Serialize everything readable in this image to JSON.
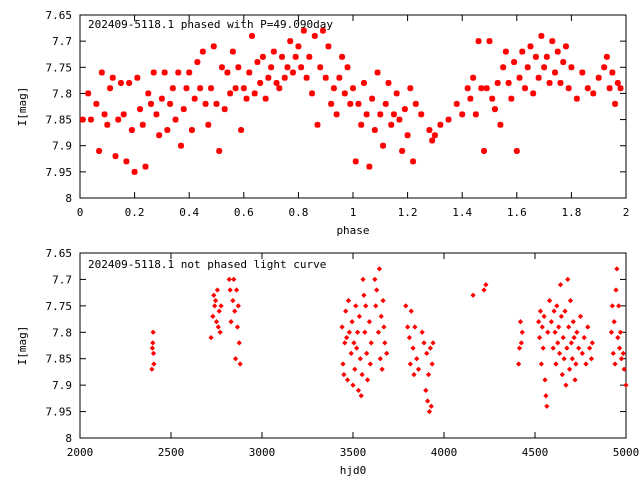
{
  "chart_data": [
    {
      "type": "scatter",
      "title": "202409-5118.1 phased with P=49.090day",
      "xlabel": "phase",
      "ylabel": "I[mag]",
      "xlim": [
        0,
        2
      ],
      "ylim": [
        7.65,
        8
      ],
      "y_inverted": true,
      "x_ticks": [
        "0",
        "0.2",
        "0.4",
        "0.6",
        "0.8",
        "1",
        "1.2",
        "1.4",
        "1.6",
        "1.8",
        "2"
      ],
      "y_ticks": [
        "7.65",
        "7.7",
        "7.75",
        "7.8",
        "7.85",
        "7.9",
        "7.95",
        "8"
      ],
      "marker_color": "#ff0000",
      "marker": "star",
      "points": [
        [
          0.01,
          7.85
        ],
        [
          0.03,
          7.8
        ],
        [
          0.04,
          7.85
        ],
        [
          0.06,
          7.82
        ],
        [
          0.07,
          7.91
        ],
        [
          0.08,
          7.76
        ],
        [
          0.09,
          7.84
        ],
        [
          0.1,
          7.86
        ],
        [
          0.11,
          7.79
        ],
        [
          0.12,
          7.77
        ],
        [
          0.13,
          7.92
        ],
        [
          0.14,
          7.85
        ],
        [
          0.15,
          7.78
        ],
        [
          0.16,
          7.84
        ],
        [
          0.17,
          7.93
        ],
        [
          0.18,
          7.78
        ],
        [
          0.19,
          7.87
        ],
        [
          0.2,
          7.95
        ],
        [
          0.21,
          7.77
        ],
        [
          0.22,
          7.83
        ],
        [
          0.23,
          7.86
        ],
        [
          0.24,
          7.94
        ],
        [
          0.25,
          7.8
        ],
        [
          0.26,
          7.82
        ],
        [
          0.27,
          7.76
        ],
        [
          0.28,
          7.84
        ],
        [
          0.29,
          7.88
        ],
        [
          0.3,
          7.81
        ],
        [
          0.31,
          7.76
        ],
        [
          0.32,
          7.87
        ],
        [
          0.33,
          7.82
        ],
        [
          0.34,
          7.79
        ],
        [
          0.35,
          7.85
        ],
        [
          0.36,
          7.76
        ],
        [
          0.37,
          7.9
        ],
        [
          0.38,
          7.83
        ],
        [
          0.39,
          7.79
        ],
        [
          0.4,
          7.76
        ],
        [
          0.41,
          7.87
        ],
        [
          0.42,
          7.81
        ],
        [
          0.43,
          7.74
        ],
        [
          0.44,
          7.79
        ],
        [
          0.45,
          7.72
        ],
        [
          0.46,
          7.82
        ],
        [
          0.47,
          7.86
        ],
        [
          0.48,
          7.79
        ],
        [
          0.49,
          7.71
        ],
        [
          0.5,
          7.82
        ],
        [
          0.51,
          7.91
        ],
        [
          0.52,
          7.75
        ],
        [
          0.53,
          7.83
        ],
        [
          0.54,
          7.76
        ],
        [
          0.55,
          7.8
        ],
        [
          0.56,
          7.72
        ],
        [
          0.57,
          7.79
        ],
        [
          0.58,
          7.75
        ],
        [
          0.59,
          7.87
        ],
        [
          0.6,
          7.79
        ],
        [
          0.61,
          7.81
        ],
        [
          0.62,
          7.76
        ],
        [
          0.63,
          7.69
        ],
        [
          0.64,
          7.8
        ],
        [
          0.65,
          7.74
        ],
        [
          0.66,
          7.78
        ],
        [
          0.67,
          7.73
        ],
        [
          0.68,
          7.81
        ],
        [
          0.69,
          7.77
        ],
        [
          0.7,
          7.75
        ],
        [
          0.71,
          7.72
        ],
        [
          0.72,
          7.78
        ],
        [
          0.73,
          7.79
        ],
        [
          0.74,
          7.73
        ],
        [
          0.75,
          7.77
        ],
        [
          0.76,
          7.75
        ],
        [
          0.77,
          7.7
        ],
        [
          0.78,
          7.76
        ],
        [
          0.79,
          7.73
        ],
        [
          0.8,
          7.71
        ],
        [
          0.81,
          7.75
        ],
        [
          0.82,
          7.68
        ],
        [
          0.83,
          7.77
        ],
        [
          0.84,
          7.73
        ],
        [
          0.85,
          7.8
        ],
        [
          0.86,
          7.69
        ],
        [
          0.87,
          7.86
        ],
        [
          0.88,
          7.75
        ],
        [
          0.89,
          7.68
        ],
        [
          0.9,
          7.77
        ],
        [
          0.91,
          7.71
        ],
        [
          0.92,
          7.82
        ],
        [
          0.93,
          7.79
        ],
        [
          0.94,
          7.84
        ],
        [
          0.95,
          7.77
        ],
        [
          0.96,
          7.73
        ],
        [
          0.97,
          7.8
        ],
        [
          0.98,
          7.75
        ],
        [
          0.99,
          7.82
        ],
        [
          1.0,
          7.79
        ],
        [
          1.01,
          7.93
        ],
        [
          1.02,
          7.82
        ],
        [
          1.03,
          7.86
        ],
        [
          1.04,
          7.78
        ],
        [
          1.05,
          7.84
        ],
        [
          1.06,
          7.94
        ],
        [
          1.07,
          7.81
        ],
        [
          1.08,
          7.87
        ],
        [
          1.09,
          7.76
        ],
        [
          1.1,
          7.84
        ],
        [
          1.11,
          7.9
        ],
        [
          1.12,
          7.82
        ],
        [
          1.13,
          7.78
        ],
        [
          1.14,
          7.86
        ],
        [
          1.15,
          7.84
        ],
        [
          1.16,
          7.8
        ],
        [
          1.17,
          7.85
        ],
        [
          1.18,
          7.91
        ],
        [
          1.19,
          7.83
        ],
        [
          1.2,
          7.88
        ],
        [
          1.21,
          7.79
        ],
        [
          1.22,
          7.93
        ],
        [
          1.23,
          7.82
        ],
        [
          1.25,
          7.84
        ],
        [
          1.28,
          7.87
        ],
        [
          1.29,
          7.89
        ],
        [
          1.3,
          7.88
        ],
        [
          1.32,
          7.86
        ],
        [
          1.35,
          7.85
        ],
        [
          1.38,
          7.82
        ],
        [
          1.4,
          7.84
        ],
        [
          1.42,
          7.79
        ],
        [
          1.43,
          7.81
        ],
        [
          1.44,
          7.77
        ],
        [
          1.45,
          7.84
        ],
        [
          1.46,
          7.7
        ],
        [
          1.47,
          7.79
        ],
        [
          1.48,
          7.91
        ],
        [
          1.49,
          7.79
        ],
        [
          1.5,
          7.7
        ],
        [
          1.51,
          7.81
        ],
        [
          1.52,
          7.83
        ],
        [
          1.53,
          7.78
        ],
        [
          1.54,
          7.86
        ],
        [
          1.55,
          7.75
        ],
        [
          1.56,
          7.72
        ],
        [
          1.57,
          7.78
        ],
        [
          1.58,
          7.81
        ],
        [
          1.59,
          7.74
        ],
        [
          1.6,
          7.91
        ],
        [
          1.61,
          7.77
        ],
        [
          1.62,
          7.72
        ],
        [
          1.63,
          7.79
        ],
        [
          1.64,
          7.75
        ],
        [
          1.65,
          7.71
        ],
        [
          1.66,
          7.8
        ],
        [
          1.67,
          7.73
        ],
        [
          1.68,
          7.77
        ],
        [
          1.69,
          7.69
        ],
        [
          1.7,
          7.75
        ],
        [
          1.71,
          7.73
        ],
        [
          1.72,
          7.78
        ],
        [
          1.73,
          7.7
        ],
        [
          1.74,
          7.76
        ],
        [
          1.75,
          7.72
        ],
        [
          1.76,
          7.78
        ],
        [
          1.77,
          7.74
        ],
        [
          1.78,
          7.71
        ],
        [
          1.79,
          7.79
        ],
        [
          1.8,
          7.75
        ],
        [
          1.82,
          7.81
        ],
        [
          1.84,
          7.76
        ],
        [
          1.86,
          7.79
        ],
        [
          1.88,
          7.8
        ],
        [
          1.9,
          7.77
        ],
        [
          1.92,
          7.75
        ],
        [
          1.93,
          7.73
        ],
        [
          1.94,
          7.79
        ],
        [
          1.95,
          7.76
        ],
        [
          1.96,
          7.82
        ],
        [
          1.97,
          7.78
        ],
        [
          1.98,
          7.79
        ]
      ]
    },
    {
      "type": "scatter",
      "title": "202409-5118.1 not phased light curve",
      "xlabel": "hjd0",
      "ylabel": "I[mag]",
      "xlim": [
        2000,
        5000
      ],
      "ylim": [
        7.65,
        8
      ],
      "y_inverted": true,
      "x_ticks": [
        "2000",
        "2500",
        "3000",
        "3500",
        "4000",
        "4500",
        "5000"
      ],
      "y_ticks": [
        "7.65",
        "7.7",
        "7.75",
        "7.8",
        "7.85",
        "7.9",
        "7.95",
        "8"
      ],
      "marker_color": "#ff0000",
      "marker": "diamond",
      "points": [
        [
          2395,
          7.87
        ],
        [
          2398,
          7.83
        ],
        [
          2400,
          7.82
        ],
        [
          2402,
          7.8
        ],
        [
          2404,
          7.84
        ],
        [
          2406,
          7.86
        ],
        [
          2720,
          7.81
        ],
        [
          2730,
          7.77
        ],
        [
          2735,
          7.73
        ],
        [
          2740,
          7.75
        ],
        [
          2745,
          7.74
        ],
        [
          2750,
          7.78
        ],
        [
          2755,
          7.72
        ],
        [
          2760,
          7.79
        ],
        [
          2765,
          7.76
        ],
        [
          2770,
          7.8
        ],
        [
          2775,
          7.75
        ],
        [
          2820,
          7.7
        ],
        [
          2825,
          7.72
        ],
        [
          2830,
          7.78
        ],
        [
          2840,
          7.74
        ],
        [
          2845,
          7.7
        ],
        [
          2850,
          7.76
        ],
        [
          2855,
          7.85
        ],
        [
          2860,
          7.72
        ],
        [
          2865,
          7.79
        ],
        [
          2870,
          7.75
        ],
        [
          2880,
          7.86
        ],
        [
          2875,
          7.82
        ],
        [
          3440,
          7.79
        ],
        [
          3445,
          7.86
        ],
        [
          3450,
          7.88
        ],
        [
          3455,
          7.82
        ],
        [
          3460,
          7.76
        ],
        [
          3465,
          7.81
        ],
        [
          3470,
          7.89
        ],
        [
          3475,
          7.74
        ],
        [
          3480,
          7.8
        ],
        [
          3490,
          7.84
        ],
        [
          3495,
          7.78
        ],
        [
          3500,
          7.9
        ],
        [
          3505,
          7.82
        ],
        [
          3510,
          7.87
        ],
        [
          3515,
          7.75
        ],
        [
          3520,
          7.83
        ],
        [
          3525,
          7.8
        ],
        [
          3530,
          7.91
        ],
        [
          3535,
          7.77
        ],
        [
          3540,
          7.85
        ],
        [
          3545,
          7.92
        ],
        [
          3550,
          7.88
        ],
        [
          3555,
          7.7
        ],
        [
          3560,
          7.73
        ],
        [
          3565,
          7.8
        ],
        [
          3570,
          7.75
        ],
        [
          3575,
          7.84
        ],
        [
          3580,
          7.89
        ],
        [
          3590,
          7.78
        ],
        [
          3595,
          7.86
        ],
        [
          3600,
          7.82
        ],
        [
          3620,
          7.7
        ],
        [
          3625,
          7.75
        ],
        [
          3630,
          7.72
        ],
        [
          3640,
          7.8
        ],
        [
          3645,
          7.68
        ],
        [
          3650,
          7.85
        ],
        [
          3655,
          7.77
        ],
        [
          3660,
          7.87
        ],
        [
          3665,
          7.74
        ],
        [
          3670,
          7.79
        ],
        [
          3675,
          7.82
        ],
        [
          3685,
          7.84
        ],
        [
          3790,
          7.75
        ],
        [
          3800,
          7.79
        ],
        [
          3810,
          7.81
        ],
        [
          3815,
          7.86
        ],
        [
          3820,
          7.76
        ],
        [
          3830,
          7.83
        ],
        [
          3835,
          7.88
        ],
        [
          3840,
          7.79
        ],
        [
          3850,
          7.85
        ],
        [
          3860,
          7.87
        ],
        [
          3880,
          7.8
        ],
        [
          3890,
          7.82
        ],
        [
          3900,
          7.91
        ],
        [
          3905,
          7.84
        ],
        [
          3910,
          7.93
        ],
        [
          3915,
          7.88
        ],
        [
          3920,
          7.95
        ],
        [
          3925,
          7.83
        ],
        [
          3930,
          7.94
        ],
        [
          3935,
          7.86
        ],
        [
          3940,
          7.82
        ],
        [
          4160,
          7.73
        ],
        [
          4220,
          7.72
        ],
        [
          4230,
          7.71
        ],
        [
          4410,
          7.86
        ],
        [
          4415,
          7.83
        ],
        [
          4420,
          7.78
        ],
        [
          4425,
          7.82
        ],
        [
          4430,
          7.8
        ],
        [
          4520,
          7.78
        ],
        [
          4525,
          7.81
        ],
        [
          4530,
          7.76
        ],
        [
          4535,
          7.86
        ],
        [
          4540,
          7.79
        ],
        [
          4545,
          7.83
        ],
        [
          4550,
          7.77
        ],
        [
          4555,
          7.89
        ],
        [
          4560,
          7.92
        ],
        [
          4565,
          7.94
        ],
        [
          4570,
          7.8
        ],
        [
          4580,
          7.74
        ],
        [
          4590,
          7.78
        ],
        [
          4600,
          7.83
        ],
        [
          4605,
          7.76
        ],
        [
          4610,
          7.8
        ],
        [
          4615,
          7.86
        ],
        [
          4620,
          7.75
        ],
        [
          4625,
          7.82
        ],
        [
          4630,
          7.79
        ],
        [
          4635,
          7.84
        ],
        [
          4640,
          7.71
        ],
        [
          4645,
          7.77
        ],
        [
          4650,
          7.88
        ],
        [
          4655,
          7.81
        ],
        [
          4660,
          7.85
        ],
        [
          4665,
          7.76
        ],
        [
          4670,
          7.9
        ],
        [
          4675,
          7.83
        ],
        [
          4680,
          7.7
        ],
        [
          4685,
          7.79
        ],
        [
          4690,
          7.87
        ],
        [
          4695,
          7.74
        ],
        [
          4700,
          7.82
        ],
        [
          4705,
          7.85
        ],
        [
          4710,
          7.78
        ],
        [
          4715,
          7.81
        ],
        [
          4720,
          7.89
        ],
        [
          4725,
          7.86
        ],
        [
          4730,
          7.8
        ],
        [
          4740,
          7.83
        ],
        [
          4750,
          7.77
        ],
        [
          4760,
          7.84
        ],
        [
          4770,
          7.81
        ],
        [
          4780,
          7.86
        ],
        [
          4790,
          7.79
        ],
        [
          4800,
          7.83
        ],
        [
          4810,
          7.85
        ],
        [
          4815,
          7.82
        ],
        [
          4920,
          7.8
        ],
        [
          4925,
          7.75
        ],
        [
          4930,
          7.84
        ],
        [
          4935,
          7.78
        ],
        [
          4940,
          7.86
        ],
        [
          4945,
          7.72
        ],
        [
          4950,
          7.68
        ],
        [
          4955,
          7.81
        ],
        [
          4960,
          7.75
        ],
        [
          4965,
          7.83
        ],
        [
          4970,
          7.8
        ],
        [
          4975,
          7.85
        ],
        [
          4985,
          7.84
        ],
        [
          4990,
          7.87
        ],
        [
          5000,
          7.9
        ]
      ]
    }
  ]
}
